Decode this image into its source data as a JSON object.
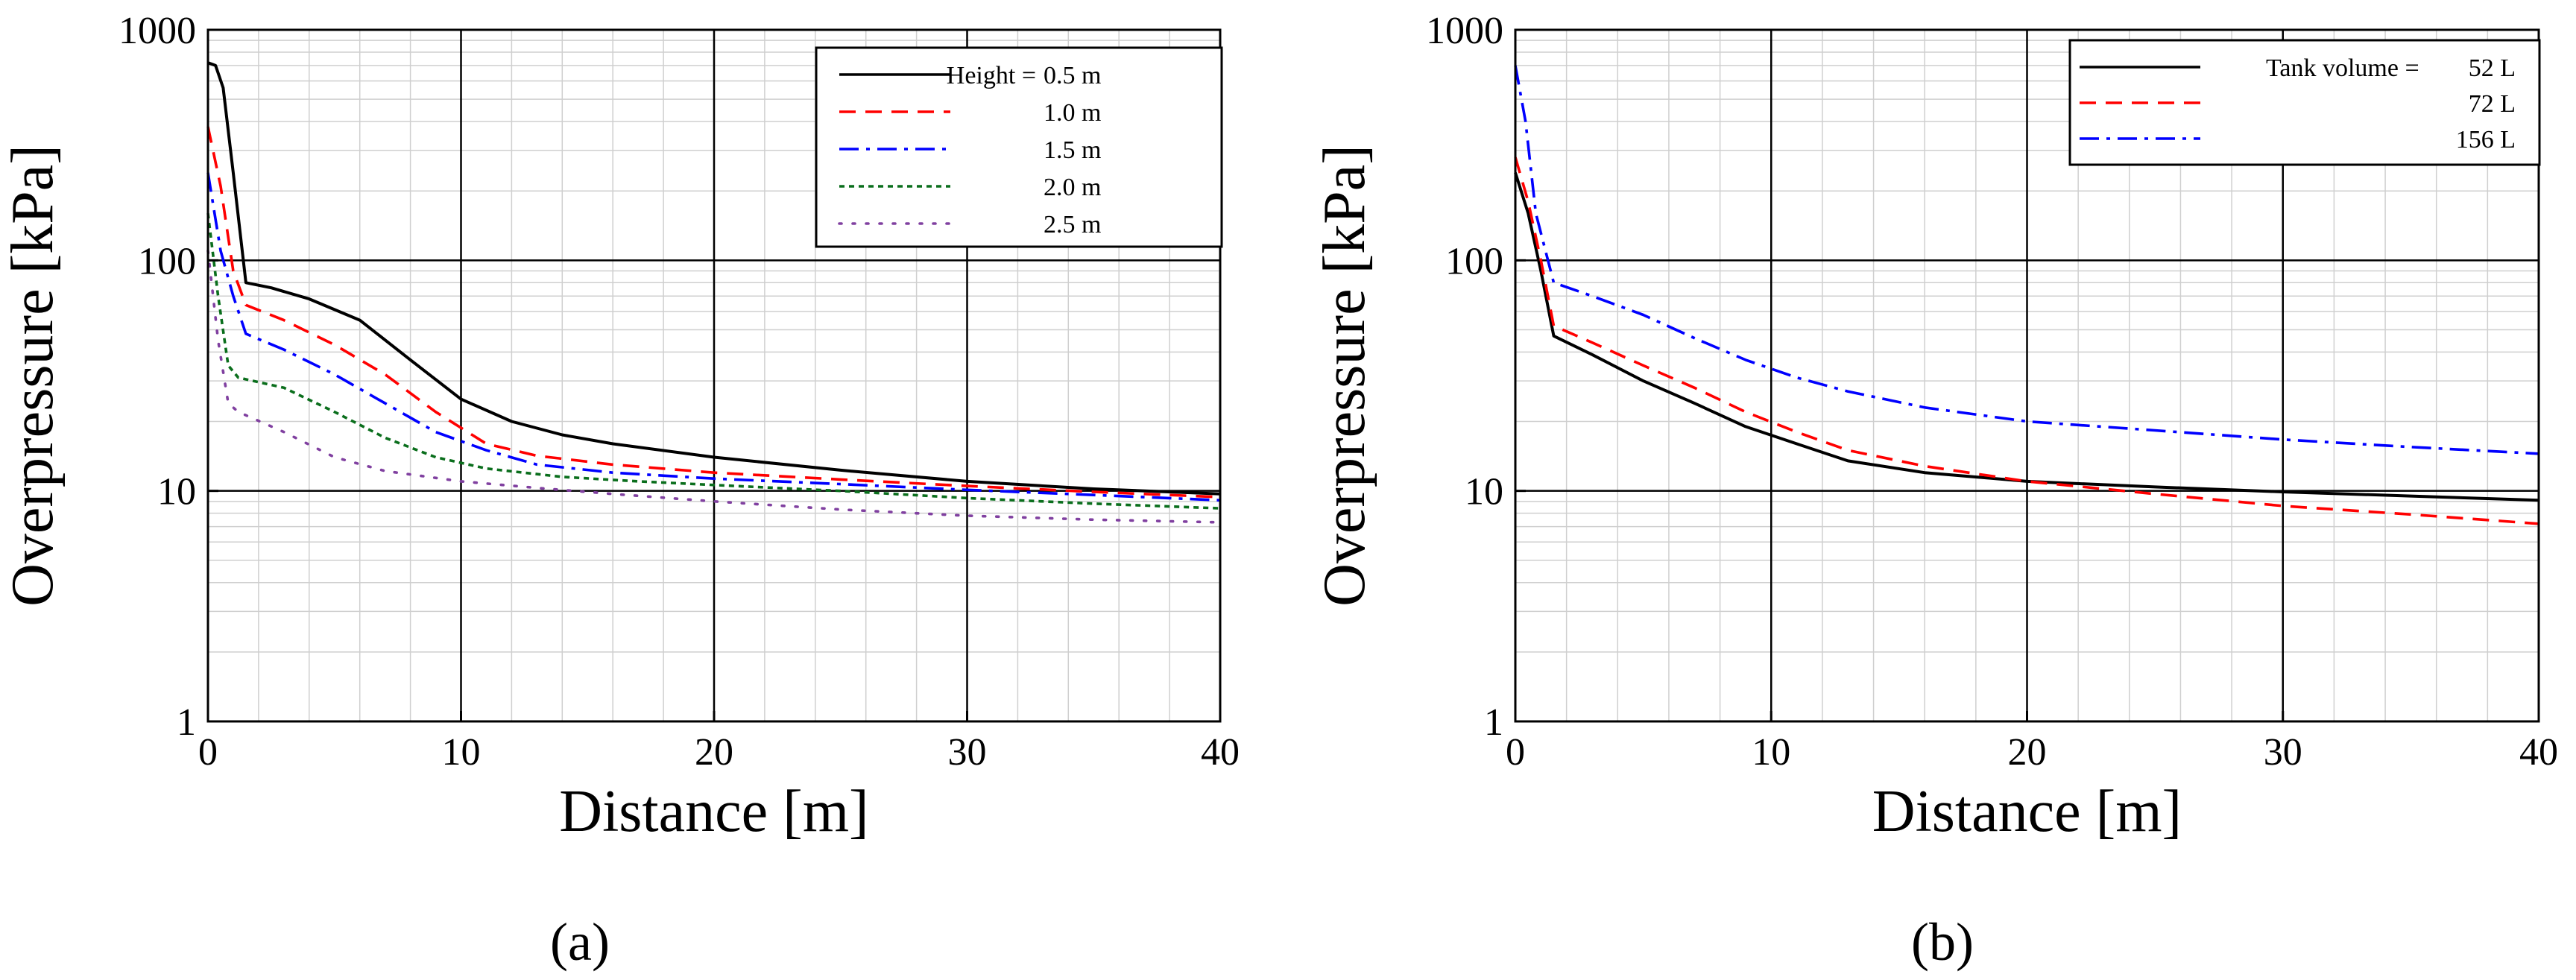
{
  "figure": {
    "labels": [
      "(a)",
      "(b)"
    ]
  },
  "chart_data": [
    {
      "type": "line",
      "id": "a",
      "panel_label": "(a)",
      "xlabel": "Distance [m]",
      "ylabel": "Overpressure [kPa]",
      "xlim": [
        0,
        40
      ],
      "ylim": [
        1,
        1000
      ],
      "yscale": "log",
      "x_ticks": [
        0,
        10,
        20,
        30,
        40
      ],
      "y_ticks": [
        1,
        10,
        100,
        1000
      ],
      "y_tick_labels": [
        "1",
        "10",
        "100",
        "1000"
      ],
      "grid": true,
      "legend": {
        "placement": "top-right",
        "prefix": "Height ="
      },
      "series": [
        {
          "name": "0.5 m",
          "color": "#000000",
          "dash": "solid",
          "points": [
            [
              0,
              720
            ],
            [
              0.3,
              700
            ],
            [
              0.6,
              560
            ],
            [
              1.0,
              240
            ],
            [
              1.5,
              80
            ],
            [
              2.5,
              76
            ],
            [
              4,
              68
            ],
            [
              6,
              55
            ],
            [
              8,
              37
            ],
            [
              10,
              25
            ],
            [
              12,
              20
            ],
            [
              14,
              17.5
            ],
            [
              16,
              16
            ],
            [
              20,
              14
            ],
            [
              25,
              12.3
            ],
            [
              30,
              11
            ],
            [
              35,
              10.2
            ],
            [
              40,
              9.7
            ]
          ]
        },
        {
          "name": "1.0 m",
          "color": "#ff0000",
          "dash": "dashed",
          "points": [
            [
              0,
              380
            ],
            [
              0.5,
              210
            ],
            [
              1.0,
              90
            ],
            [
              1.5,
              64
            ],
            [
              3,
              55
            ],
            [
              5,
              43
            ],
            [
              7,
              32
            ],
            [
              9,
              22
            ],
            [
              11,
              16
            ],
            [
              13,
              14.2
            ],
            [
              16,
              13
            ],
            [
              20,
              12
            ],
            [
              25,
              11.2
            ],
            [
              30,
              10.5
            ],
            [
              35,
              9.9
            ],
            [
              40,
              9.4
            ]
          ]
        },
        {
          "name": "1.5 m",
          "color": "#0000ff",
          "dash": "dashdot",
          "points": [
            [
              0,
              240
            ],
            [
              0.5,
              110
            ],
            [
              1.0,
              70
            ],
            [
              1.5,
              48
            ],
            [
              3,
              41
            ],
            [
              5,
              32
            ],
            [
              7,
              24
            ],
            [
              9,
              18
            ],
            [
              11,
              15
            ],
            [
              13,
              13
            ],
            [
              16,
              12
            ],
            [
              20,
              11.3
            ],
            [
              25,
              10.7
            ],
            [
              30,
              10.1
            ],
            [
              35,
              9.6
            ],
            [
              40,
              9.1
            ]
          ]
        },
        {
          "name": "2.0 m",
          "color": "#0a6e1c",
          "dash": "dotted",
          "points": [
            [
              0,
              160
            ],
            [
              0.4,
              70
            ],
            [
              0.8,
              35
            ],
            [
              1.2,
              31
            ],
            [
              3,
              28
            ],
            [
              5,
              22
            ],
            [
              7,
              17
            ],
            [
              9,
              14
            ],
            [
              11,
              12.5
            ],
            [
              14,
              11.5
            ],
            [
              17,
              11
            ],
            [
              20,
              10.6
            ],
            [
              25,
              10
            ],
            [
              30,
              9.3
            ],
            [
              35,
              8.8
            ],
            [
              40,
              8.4
            ]
          ]
        },
        {
          "name": "2.5 m",
          "color": "#8040a0",
          "dash": "sparse-dot",
          "points": [
            [
              0,
              110
            ],
            [
              0.4,
              45
            ],
            [
              0.8,
              24
            ],
            [
              1.2,
              22
            ],
            [
              3,
              18
            ],
            [
              5,
              14
            ],
            [
              7,
              12.2
            ],
            [
              10,
              11
            ],
            [
              13,
              10.3
            ],
            [
              16,
              9.7
            ],
            [
              20,
              9
            ],
            [
              25,
              8.3
            ],
            [
              30,
              7.8
            ],
            [
              35,
              7.5
            ],
            [
              40,
              7.3
            ]
          ]
        }
      ]
    },
    {
      "type": "line",
      "id": "b",
      "panel_label": "(b)",
      "xlabel": "Distance [m]",
      "ylabel": "Overpressure [kPa]",
      "xlim": [
        0,
        40
      ],
      "ylim": [
        1,
        1000
      ],
      "yscale": "log",
      "x_ticks": [
        0,
        10,
        20,
        30,
        40
      ],
      "y_ticks": [
        1,
        10,
        100,
        1000
      ],
      "y_tick_labels": [
        "1",
        "10",
        "100",
        "1000"
      ],
      "grid": true,
      "legend": {
        "placement": "top-right",
        "prefix": "Tank volume ="
      },
      "series": [
        {
          "name": "52 L",
          "color": "#000000",
          "dash": "solid",
          "points": [
            [
              0,
              240
            ],
            [
              0.5,
              160
            ],
            [
              1.0,
              90
            ],
            [
              1.5,
              47
            ],
            [
              3,
              39
            ],
            [
              5,
              30
            ],
            [
              7,
              24
            ],
            [
              9,
              19
            ],
            [
              11,
              16
            ],
            [
              13,
              13.5
            ],
            [
              16,
              12
            ],
            [
              20,
              11
            ],
            [
              25,
              10.4
            ],
            [
              30,
              9.9
            ],
            [
              35,
              9.5
            ],
            [
              40,
              9.1
            ]
          ]
        },
        {
          "name": "72 L",
          "color": "#ff0000",
          "dash": "dashed",
          "points": [
            [
              0,
              280
            ],
            [
              0.5,
              180
            ],
            [
              1.0,
              100
            ],
            [
              1.5,
              52
            ],
            [
              3,
              44
            ],
            [
              5,
              35
            ],
            [
              7,
              28
            ],
            [
              9,
              22
            ],
            [
              11,
              18
            ],
            [
              13,
              15
            ],
            [
              16,
              12.8
            ],
            [
              20,
              11
            ],
            [
              25,
              9.7
            ],
            [
              30,
              8.6
            ],
            [
              35,
              7.9
            ],
            [
              40,
              7.2
            ]
          ]
        },
        {
          "name": "156 L",
          "color": "#0000ff",
          "dash": "dashdot",
          "points": [
            [
              0,
              700
            ],
            [
              0.4,
              400
            ],
            [
              0.8,
              160
            ],
            [
              1.5,
              80
            ],
            [
              3,
              70
            ],
            [
              5,
              58
            ],
            [
              7,
              46
            ],
            [
              9,
              37
            ],
            [
              11,
              31
            ],
            [
              13,
              27
            ],
            [
              16,
              23
            ],
            [
              20,
              20
            ],
            [
              25,
              18.3
            ],
            [
              30,
              16.7
            ],
            [
              35,
              15.5
            ],
            [
              40,
              14.5
            ]
          ]
        }
      ]
    }
  ]
}
